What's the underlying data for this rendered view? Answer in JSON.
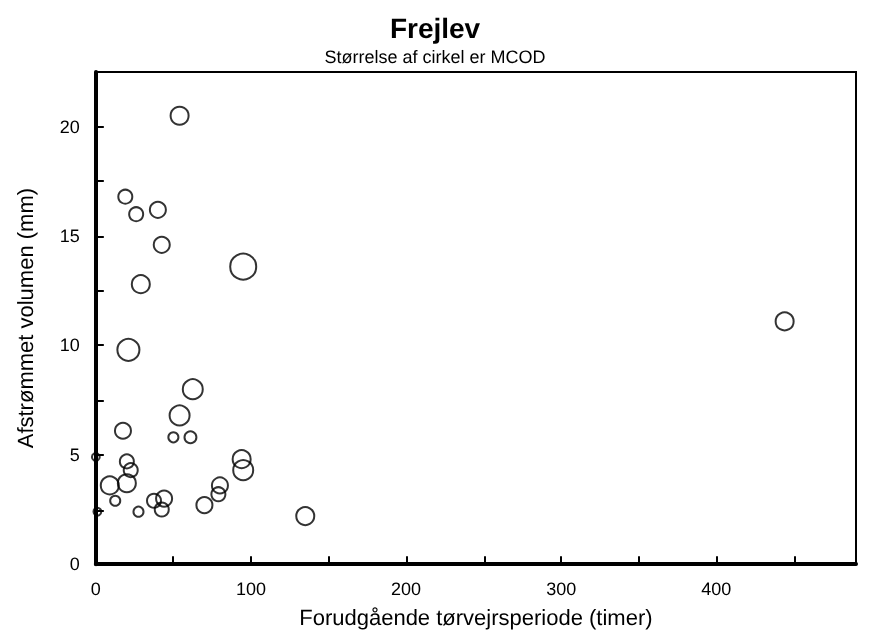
{
  "chart_data": {
    "type": "bubble",
    "title": "Frejlev",
    "subtitle": "Størrelse af cirkel er MCOD",
    "xlabel": "Forudgående tørvejrsperiode (timer)",
    "ylabel": "Afstrømmet volumen (mm)",
    "x": [
      54,
      19,
      26,
      40,
      42.5,
      95,
      29,
      21,
      62.5,
      54,
      17.5,
      50,
      61,
      0,
      20,
      22.5,
      94,
      95,
      9,
      20,
      12.5,
      80,
      79,
      37.5,
      44,
      42.5,
      27.5,
      70,
      135,
      1,
      444
    ],
    "values": [
      20.5,
      16.8,
      16.0,
      16.2,
      14.6,
      13.6,
      12.8,
      9.8,
      8.0,
      6.8,
      6.1,
      5.8,
      5.8,
      4.9,
      4.7,
      4.3,
      4.8,
      4.3,
      3.6,
      3.7,
      2.9,
      3.6,
      3.2,
      2.9,
      3.0,
      2.5,
      2.4,
      2.7,
      2.2,
      2.4,
      11.1
    ],
    "sizes": [
      0.48,
      0.29,
      0.29,
      0.38,
      0.38,
      1,
      0.48,
      0.72,
      0.59,
      0.59,
      0.38,
      0.15,
      0.21,
      0.09,
      0.29,
      0.29,
      0.48,
      0.59,
      0.48,
      0.48,
      0.15,
      0.38,
      0.29,
      0.29,
      0.38,
      0.29,
      0.15,
      0.38,
      0.48,
      0.09,
      0.48
    ],
    "color": "#000000",
    "marker": "circle",
    "grid": false,
    "xlim": [
      0,
      490
    ],
    "xticks": [
      0,
      {
        "value": 50,
        "label": null
      },
      100,
      {
        "value": 150,
        "label": null
      },
      200,
      {
        "value": 250,
        "label": null
      },
      300,
      {
        "value": 350,
        "label": null
      },
      400,
      {
        "value": 450,
        "label": null
      }
    ],
    "ylim": [
      0,
      22.5
    ],
    "yticks": [
      0,
      {
        "value": 2.5,
        "label": null
      },
      5,
      {
        "value": 7.5,
        "label": null
      },
      10,
      {
        "value": 12.5,
        "label": null
      },
      15,
      {
        "value": 17.5,
        "label": null
      },
      20
    ]
  }
}
